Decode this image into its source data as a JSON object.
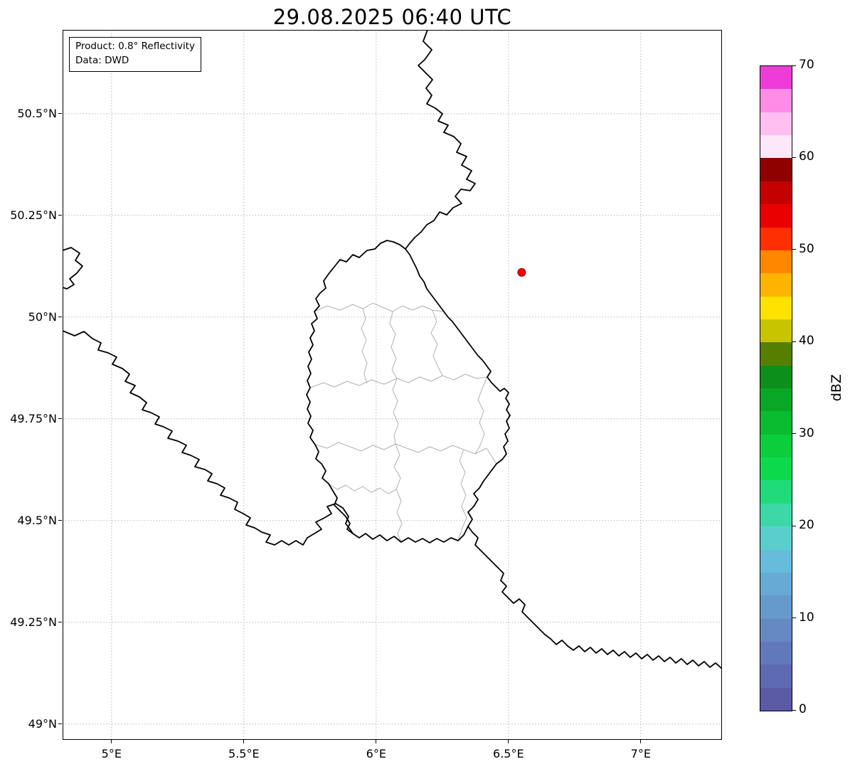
{
  "title": "29.08.2025 06:40 UTC",
  "info_box": {
    "line1": "Product: 0.8° Reflectivity",
    "line2": "Data: DWD"
  },
  "map": {
    "extent": {
      "lon_min": 4.815,
      "lon_max": 7.307,
      "lat_min": 48.961,
      "lat_max": 50.706
    },
    "x_ticks": [
      {
        "lon": 5.0,
        "label": "5°E"
      },
      {
        "lon": 5.5,
        "label": "5.5°E"
      },
      {
        "lon": 6.0,
        "label": "6°E"
      },
      {
        "lon": 6.5,
        "label": "6.5°E"
      },
      {
        "lon": 7.0,
        "label": "7°E"
      }
    ],
    "y_ticks": [
      {
        "lat": 50.5,
        "label": "50.5°N"
      },
      {
        "lat": 50.25,
        "label": "50.25°N"
      },
      {
        "lat": 50.0,
        "label": "50°N"
      },
      {
        "lat": 49.75,
        "label": "49.75°N"
      },
      {
        "lat": 49.5,
        "label": "49.5°N"
      },
      {
        "lat": 49.25,
        "label": "49.25°N"
      },
      {
        "lat": 49.0,
        "label": "49°N"
      }
    ],
    "marker": {
      "lon": 6.55,
      "lat": 50.11,
      "color": "#ff0000"
    }
  },
  "colorbar": {
    "label": "dBZ",
    "min": 0,
    "max": 70,
    "ticks": [
      0,
      10,
      20,
      30,
      40,
      50,
      60,
      70
    ],
    "segment_dbz": 2.5,
    "colors_bottom_to_top": [
      "#5a5aa5",
      "#5e6ab2",
      "#6179ba",
      "#6489c3",
      "#6699cc",
      "#67aad5",
      "#66bcdb",
      "#59cfcd",
      "#3cd8a8",
      "#1fdb79",
      "#0dd94d",
      "#0bce3c",
      "#0abc2f",
      "#09a726",
      "#0d8f1b",
      "#567f00",
      "#c9c400",
      "#ffe200",
      "#ffb400",
      "#ff8700",
      "#ff3000",
      "#ea0000",
      "#c40000",
      "#8f0000",
      "#ffe6f9",
      "#ffbff1",
      "#ff8ce6",
      "#ee3cd8"
    ]
  }
}
